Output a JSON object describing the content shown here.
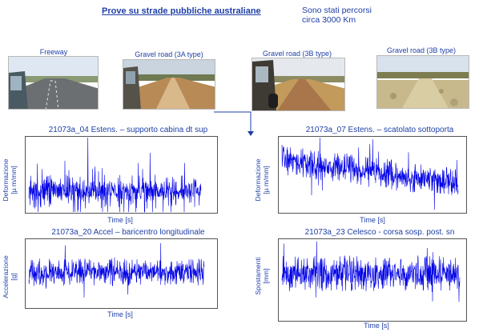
{
  "header": {
    "title": "Prove su strade pubbliche australiane",
    "note_line1": "Sono stati percorsi",
    "note_line2": "circa 3000 Km"
  },
  "photos": [
    {
      "caption": "Freeway",
      "icon": "freeway-photo"
    },
    {
      "caption": "Gravel road (3A type)",
      "icon": "gravel-road-3a-photo"
    },
    {
      "caption": "Gravel road (3B type)",
      "icon": "gravel-road-3b-photo"
    },
    {
      "caption": "Gravel road (3B type)",
      "icon": "gravel-road-3b-photo"
    }
  ],
  "plots": [
    {
      "title": "21073a_04 Estens. – supporto cabina dt sup",
      "ylabel_line1": "Deformazione",
      "ylabel_line2": "[µ m/mm]",
      "xlabel": "Time [s]"
    },
    {
      "title": "21073a_07 Estens. – scatolato sottoporta",
      "ylabel_line1": "Deformazione",
      "ylabel_line2": "[µ m/mm]",
      "xlabel": "Time [s]"
    },
    {
      "title": "21073a_20 Accel – baricentro longitudinale",
      "ylabel_line1": "Accelerazione",
      "ylabel_line2": "[g]",
      "xlabel": "Time [s]"
    },
    {
      "title": "21073a_23 Celesco - corsa sosp. post. sn",
      "ylabel_line1": "Spostamenti",
      "ylabel_line2": "[mm]",
      "xlabel": "Time [s]"
    }
  ],
  "colors": {
    "accent": "#1f3fa6",
    "signal": "#0000e6"
  }
}
